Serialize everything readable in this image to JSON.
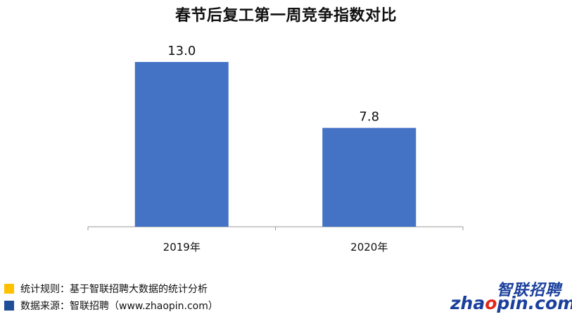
{
  "chart_data": {
    "type": "bar",
    "title": "春节后复工第一周竞争指数对比",
    "categories": [
      "2019年",
      "2020年"
    ],
    "values": [
      13.0,
      7.8
    ],
    "value_labels": [
      "13.0",
      "7.8"
    ],
    "ylim": [
      0,
      14.5
    ],
    "grid": false,
    "bar_color": "#4472c4"
  },
  "notes": [
    {
      "text": "统计规则：基于智联招聘大数据的统计分析",
      "color": "#ffc000"
    },
    {
      "text": "数据来源：智联招聘（www.zhaopin.com）",
      "color": "#1f4e99"
    }
  ],
  "logo": {
    "cn": "智联招聘",
    "en_a": "zha",
    "en_dot": "o",
    "en_b": "pin.com"
  }
}
